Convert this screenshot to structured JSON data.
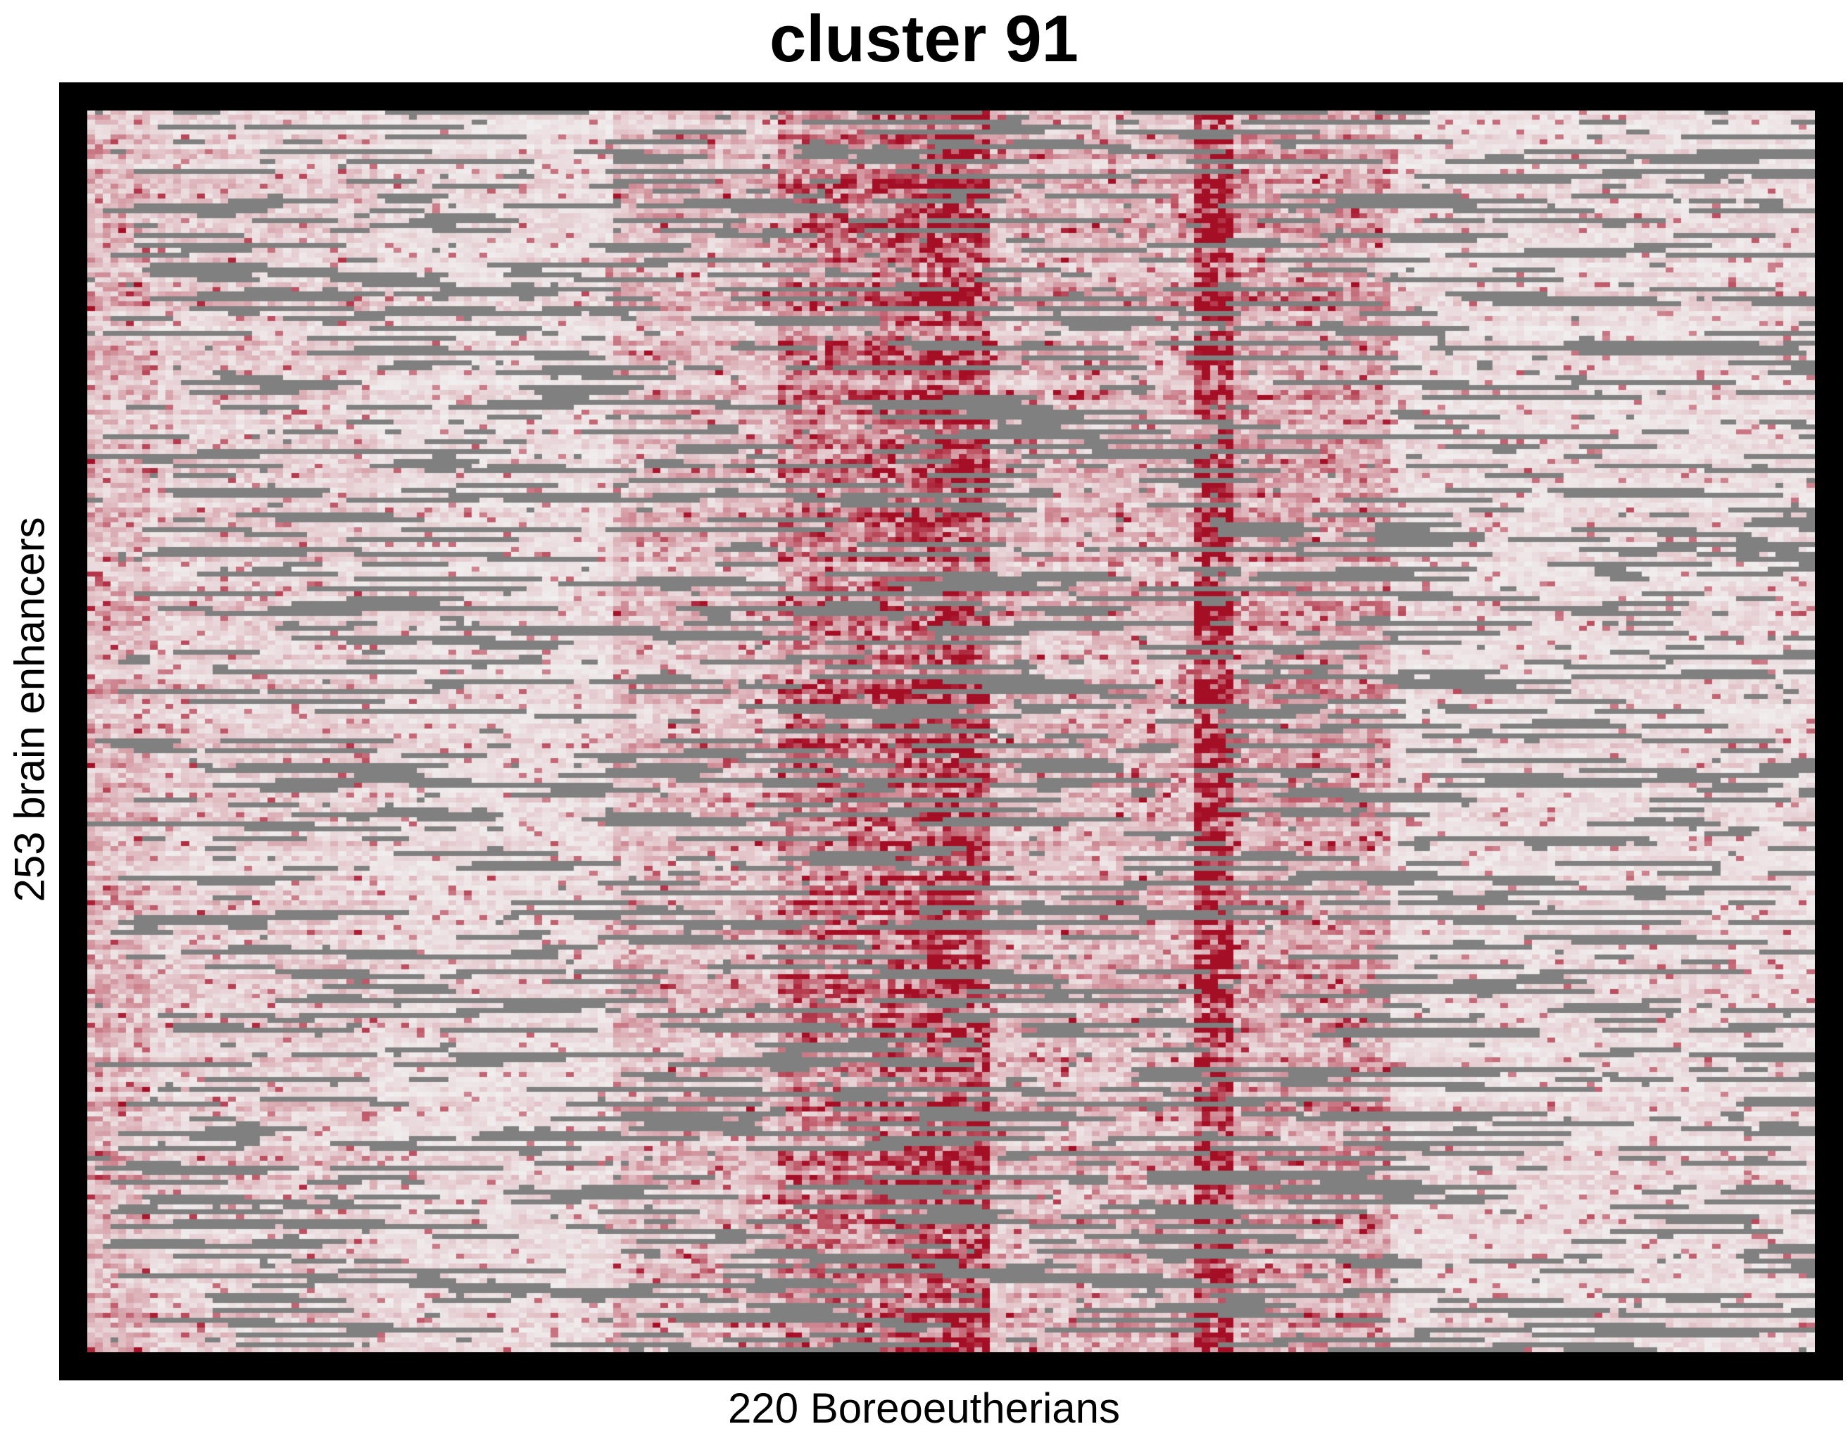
{
  "chart_data": {
    "type": "heatmap",
    "title": "cluster 91",
    "xlabel": "220 Boreoeutherians",
    "ylabel": "253 brain enhancers",
    "n_cols": 220,
    "n_rows": 253,
    "legend": "none",
    "grid": false,
    "colors": {
      "background": "#ffffff",
      "frame": "#000000",
      "low": "#f2f2f2",
      "high": "#a50f26",
      "missing": "#808080"
    },
    "column_intensity_bands": [
      {
        "cols": [
          0,
          7
        ],
        "level": 0.3
      },
      {
        "cols": [
          8,
          36
        ],
        "level": 0.2
      },
      {
        "cols": [
          37,
          66
        ],
        "level": 0.14
      },
      {
        "cols": [
          67,
          87
        ],
        "level": 0.28
      },
      {
        "cols": [
          88,
          99
        ],
        "level": 0.55
      },
      {
        "cols": [
          100,
          106
        ],
        "level": 0.65
      },
      {
        "cols": [
          107,
          114
        ],
        "level": 0.85
      },
      {
        "cols": [
          115,
          140
        ],
        "level": 0.3
      },
      {
        "cols": [
          141,
          145
        ],
        "level": 0.92
      },
      {
        "cols": [
          146,
          165
        ],
        "level": 0.38
      },
      {
        "cols": [
          166,
          219
        ],
        "level": 0.14
      }
    ],
    "missing_fraction": 0.2,
    "seed": 91
  }
}
